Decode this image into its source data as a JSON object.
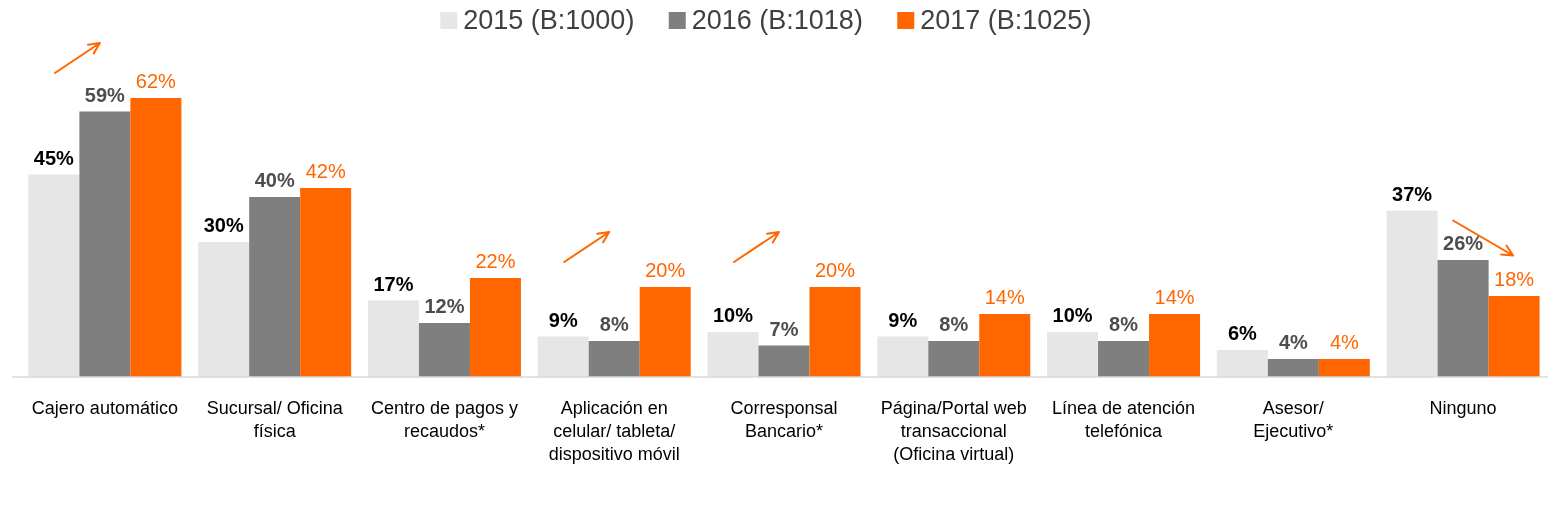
{
  "chart_data": {
    "type": "bar",
    "categories": [
      "Cajero automático",
      "Sucursal/ Oficina física",
      "Centro de pagos y recaudos*",
      "Aplicación en celular/ tableta/ dispositivo móvil",
      "Corresponsal Bancario*",
      "Página/Portal web transaccional (Oficina virtual)",
      "Línea de atención telefónica",
      "Asesor/ Ejecutivo*",
      "Ninguno"
    ],
    "series": [
      {
        "name": "2015 (B:1000)",
        "color": "#e6e6e6",
        "values": [
          45,
          30,
          17,
          9,
          10,
          9,
          10,
          6,
          37
        ],
        "value_labels": [
          "45%",
          "30%",
          "17%",
          "9%",
          "10%",
          "9%",
          "10%",
          "6%",
          "37%"
        ]
      },
      {
        "name": "2016 (B:1018)",
        "color": "#7f7f7f",
        "values": [
          59,
          40,
          12,
          8,
          7,
          8,
          8,
          4,
          26
        ],
        "value_labels": [
          "59%",
          "40%",
          "12%",
          "8%",
          "7%",
          "8%",
          "8%",
          "4%",
          "26%"
        ]
      },
      {
        "name": "2017 (B:1025)",
        "color": "#ff6600",
        "values": [
          62,
          42,
          22,
          20,
          20,
          14,
          14,
          4,
          18
        ],
        "value_labels": [
          "62%",
          "42%",
          "22%",
          "20%",
          "20%",
          "14%",
          "14%",
          "4%",
          "18%"
        ]
      }
    ],
    "legend": "top"
  }
}
